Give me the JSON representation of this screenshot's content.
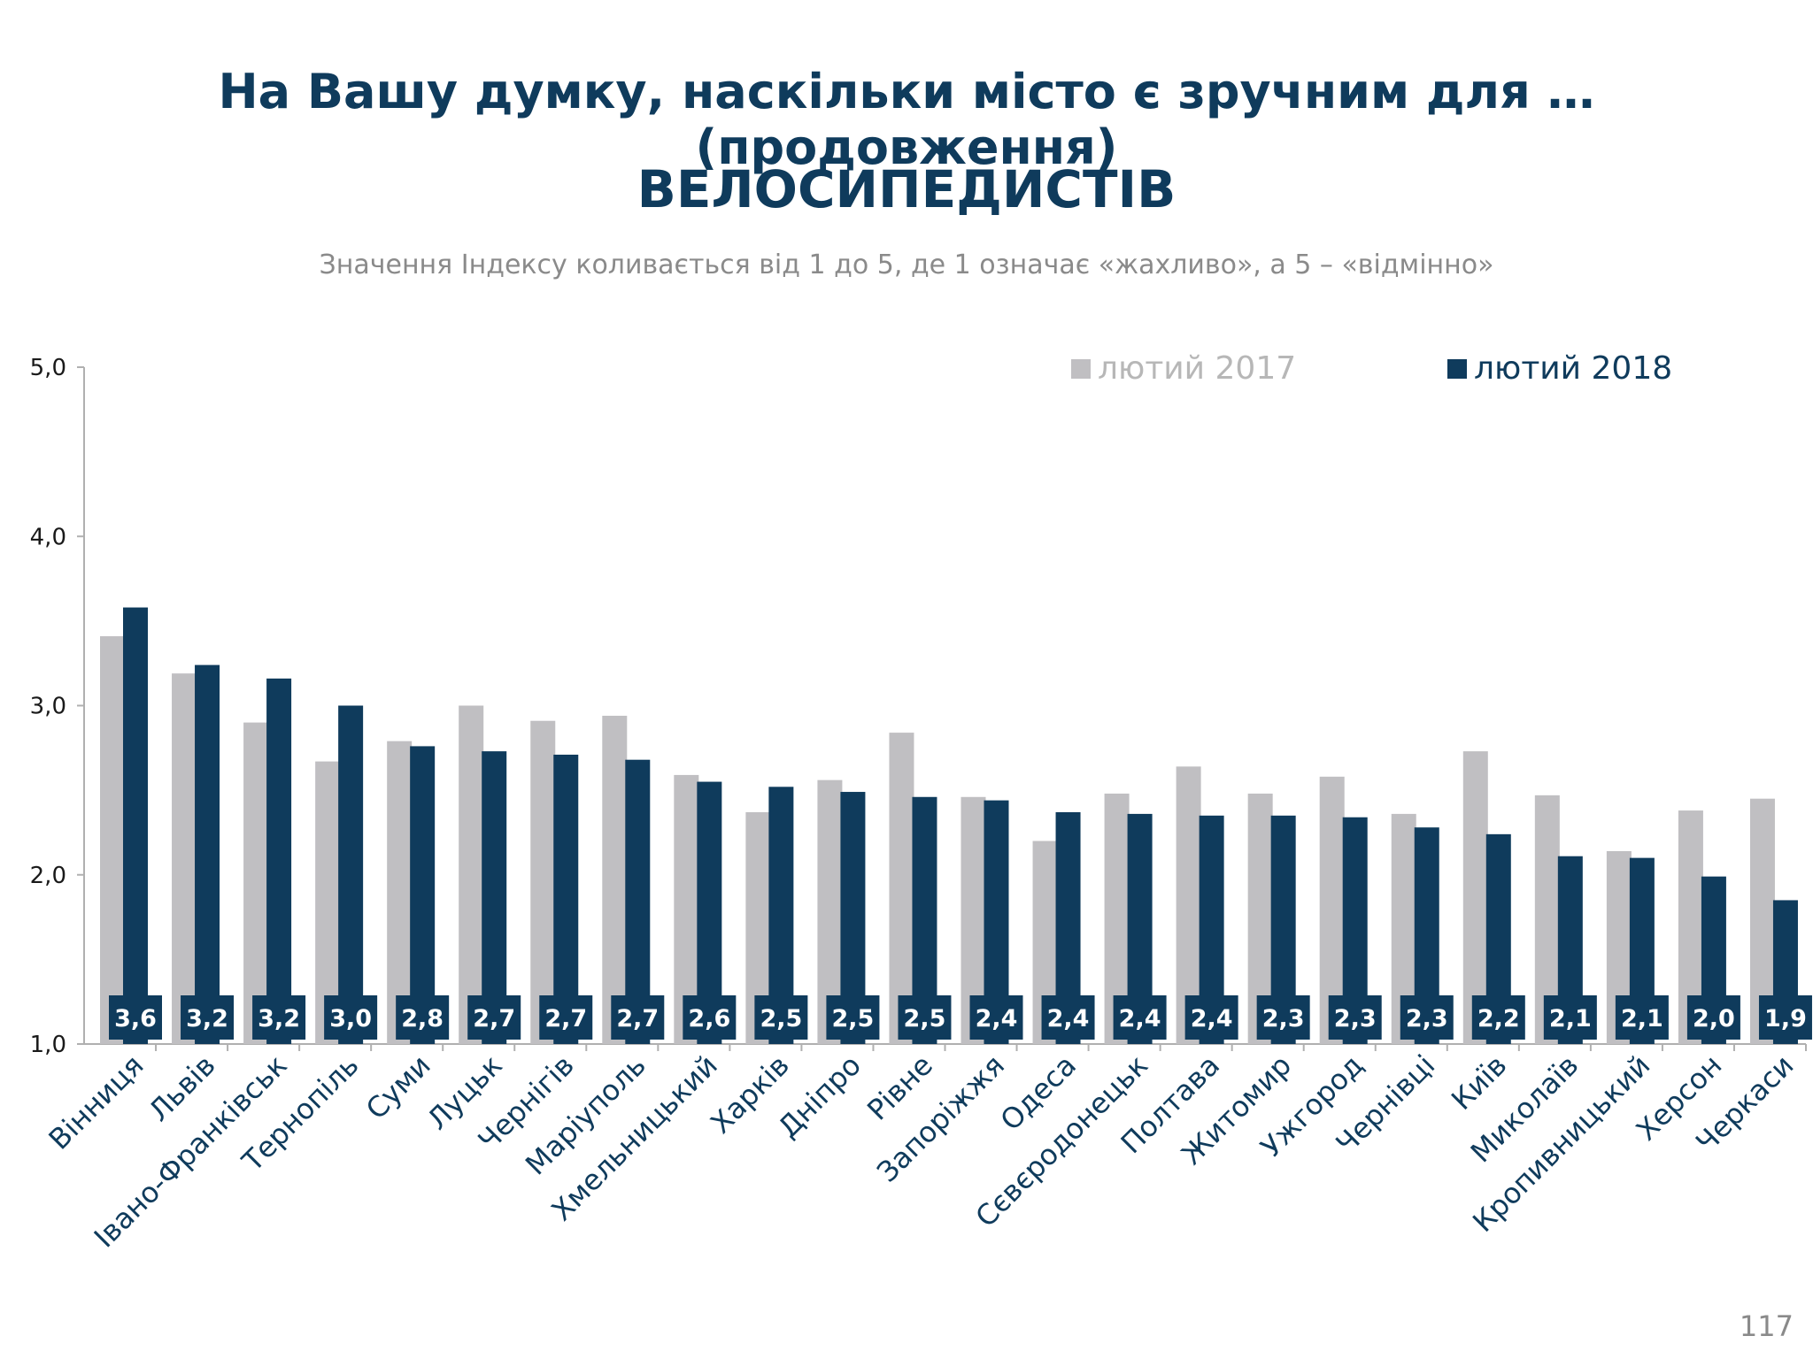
{
  "title": "На Вашу думку, наскільки місто є зручним для … (продовження)",
  "subtitle": "ВЕЛОСИПЕДИСТІВ",
  "note": "Значення Індексу коливається від 1 до 5, де 1 означає «жахливо», а 5 – «відмінно»",
  "page_number": "117",
  "colors": {
    "series_2017": "#c0bfc2",
    "series_2018": "#0f3b5c",
    "label_bg": "#0f3b5c",
    "label_text": "#ffffff",
    "axis": "#b0b0b0"
  },
  "chart_data": {
    "type": "bar",
    "title": "ВЕЛОСИПЕДИСТІВ",
    "xlabel": "",
    "ylabel": "",
    "ylim": [
      1.0,
      5.0
    ],
    "yticks": [
      "1,0",
      "2,0",
      "3,0",
      "4,0",
      "5,0"
    ],
    "ytick_values": [
      1,
      2,
      3,
      4,
      5
    ],
    "grid": false,
    "legend_position": "top-right",
    "categories": [
      "Вінниця",
      "Львів",
      "Івано-Франківськ",
      "Тернопіль",
      "Суми",
      "Луцьк",
      "Чернігів",
      "Маріуполь",
      "Хмельницький",
      "Харків",
      "Дніпро",
      "Рівне",
      "Запоріжжя",
      "Одеса",
      "Сєвєродонецьк",
      "Полтава",
      "Житомир",
      "Ужгород",
      "Чернівці",
      "Київ",
      "Миколаїв",
      "Кропивницький",
      "Херсон",
      "Черкаси"
    ],
    "series": [
      {
        "name": "лютий 2017",
        "values": [
          3.41,
          3.19,
          2.9,
          2.67,
          2.79,
          3.0,
          2.91,
          2.94,
          2.59,
          2.37,
          2.56,
          2.84,
          2.46,
          2.2,
          2.48,
          2.64,
          2.48,
          2.58,
          2.36,
          2.73,
          2.47,
          2.14,
          2.38,
          2.45
        ]
      },
      {
        "name": "лютий 2018",
        "values": [
          3.58,
          3.24,
          3.16,
          3.0,
          2.76,
          2.73,
          2.71,
          2.68,
          2.55,
          2.52,
          2.49,
          2.46,
          2.44,
          2.37,
          2.36,
          2.35,
          2.35,
          2.34,
          2.28,
          2.24,
          2.11,
          2.1,
          1.99,
          1.85
        ]
      }
    ],
    "data_labels": [
      "3,6",
      "3,2",
      "3,2",
      "3,0",
      "2,8",
      "2,7",
      "2,7",
      "2,7",
      "2,6",
      "2,5",
      "2,5",
      "2,5",
      "2,4",
      "2,4",
      "2,4",
      "2,4",
      "2,3",
      "2,3",
      "2,3",
      "2,2",
      "2,1",
      "2,1",
      "2,0",
      "1,9"
    ]
  }
}
